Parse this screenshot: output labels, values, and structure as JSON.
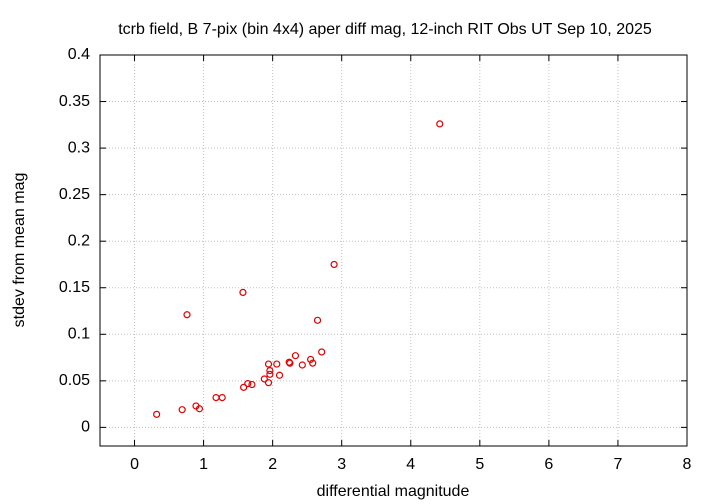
{
  "chart_data": {
    "type": "scatter",
    "title": "tcrb field, B 7-pix (bin 4x4) aper diff mag,  12-inch RIT Obs UT Sep 10, 2025",
    "x_label": "differential magnitude",
    "y_label": "stdev from mean mag",
    "color": "#e00000",
    "grid": true,
    "xlim": [
      -0.5,
      8
    ],
    "ylim": [
      -0.02,
      0.4
    ],
    "xticks": [
      0,
      1,
      2,
      3,
      4,
      5,
      6,
      7,
      8
    ],
    "yticks": [
      0,
      0.05,
      0.1,
      0.15,
      0.2,
      0.25,
      0.3,
      0.35,
      0.4
    ],
    "x": [
      0.32,
      0.69,
      0.76,
      0.89,
      0.94,
      1.18,
      1.27,
      1.57,
      1.58,
      1.64,
      1.7,
      1.88,
      1.94,
      1.94,
      1.96,
      1.96,
      2.06,
      2.1,
      2.24,
      2.25,
      2.33,
      2.43,
      2.55,
      2.58,
      2.65,
      2.71,
      2.89,
      4.42
    ],
    "values": [
      0.014,
      0.019,
      0.121,
      0.023,
      0.02,
      0.032,
      0.032,
      0.145,
      0.043,
      0.047,
      0.046,
      0.052,
      0.048,
      0.068,
      0.061,
      0.057,
      0.068,
      0.056,
      0.07,
      0.069,
      0.077,
      0.067,
      0.073,
      0.069,
      0.115,
      0.081,
      0.175,
      0.326
    ]
  }
}
